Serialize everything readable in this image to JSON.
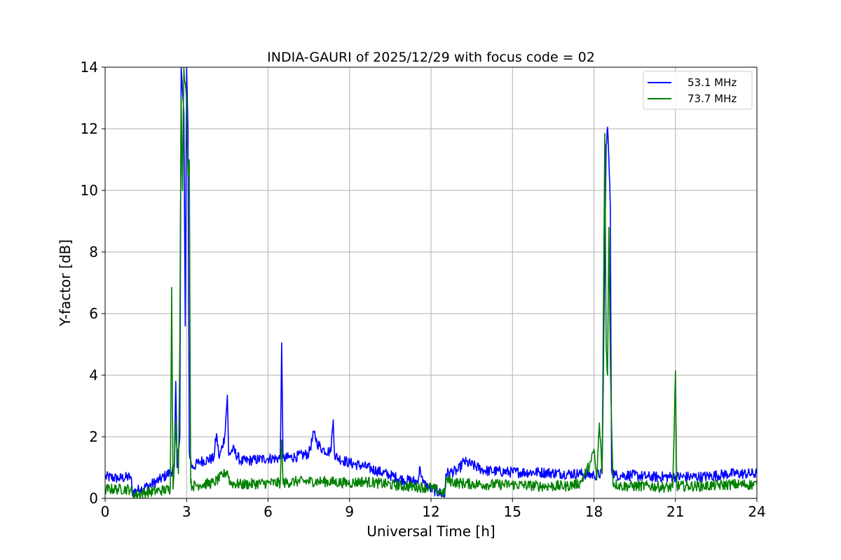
{
  "chart_data": {
    "type": "line",
    "title": "INDIA-GAURI of 2025/12/29 with focus code = 02",
    "xlabel": "Universal Time [h]",
    "ylabel": "Y-factor [dB]",
    "xlim": [
      0,
      24
    ],
    "ylim": [
      0,
      14
    ],
    "xticks": [
      0,
      3,
      6,
      9,
      12,
      15,
      18,
      21,
      24
    ],
    "yticks": [
      0,
      2,
      4,
      6,
      8,
      10,
      12,
      14
    ],
    "grid": true,
    "legend_position": "top-right",
    "series": [
      {
        "name": "53.1 MHz",
        "color": "#0000ff",
        "x": [
          0.0,
          0.5,
          0.95,
          1.0,
          1.3,
          1.7,
          2.0,
          2.4,
          2.55,
          2.6,
          2.65,
          2.7,
          2.75,
          2.8,
          2.85,
          2.9,
          2.95,
          3.0,
          3.05,
          3.1,
          3.2,
          3.5,
          4.0,
          4.1,
          4.2,
          4.4,
          4.5,
          4.55,
          4.7,
          5.0,
          5.5,
          6.0,
          6.45,
          6.5,
          6.55,
          7.0,
          7.5,
          7.7,
          7.8,
          8.0,
          8.3,
          8.4,
          8.45,
          8.6,
          9.0,
          9.5,
          10.0,
          10.5,
          11.0,
          11.5,
          11.6,
          11.7,
          12.0,
          12.4,
          12.5,
          12.55,
          12.7,
          13.0,
          13.2,
          14.0,
          15.0,
          16.0,
          17.0,
          17.5,
          18.0,
          18.3,
          18.45,
          18.5,
          18.55,
          18.6,
          18.65,
          18.8,
          19.0,
          19.5,
          20.0,
          21.0,
          21.5,
          22.0,
          23.0,
          24.0
        ],
        "y": [
          0.7,
          0.65,
          0.7,
          0.2,
          0.3,
          0.45,
          0.6,
          0.85,
          1.0,
          3.8,
          1.0,
          1.6,
          2.0,
          14.0,
          13.2,
          12.5,
          5.6,
          14.0,
          12.0,
          1.5,
          1.0,
          1.2,
          1.3,
          2.1,
          1.3,
          2.0,
          3.35,
          1.4,
          1.6,
          1.2,
          1.25,
          1.3,
          1.3,
          5.05,
          1.3,
          1.35,
          1.45,
          2.15,
          1.8,
          1.6,
          1.5,
          2.55,
          1.4,
          1.3,
          1.15,
          1.05,
          0.9,
          0.75,
          0.6,
          0.55,
          1.0,
          0.5,
          0.3,
          0.15,
          0.05,
          0.8,
          0.85,
          0.9,
          1.2,
          0.9,
          0.85,
          0.85,
          0.8,
          0.8,
          0.75,
          0.8,
          11.5,
          12.05,
          11.0,
          9.5,
          0.9,
          0.75,
          0.75,
          0.75,
          0.7,
          0.7,
          0.7,
          0.7,
          0.8,
          0.8
        ]
      },
      {
        "name": "73.7 MHz",
        "color": "#008000",
        "x": [
          0.0,
          0.5,
          0.95,
          1.0,
          1.5,
          2.0,
          2.4,
          2.45,
          2.5,
          2.55,
          2.6,
          2.7,
          2.75,
          2.8,
          2.85,
          2.9,
          2.95,
          3.0,
          3.05,
          3.1,
          3.15,
          3.2,
          3.5,
          4.0,
          4.4,
          4.5,
          4.6,
          5.0,
          6.0,
          6.45,
          6.5,
          6.55,
          7.0,
          8.0,
          9.0,
          9.5,
          10.0,
          11.0,
          12.0,
          12.4,
          12.5,
          12.55,
          13.0,
          14.0,
          15.0,
          16.0,
          17.0,
          17.5,
          17.9,
          18.0,
          18.1,
          18.2,
          18.3,
          18.4,
          18.45,
          18.5,
          18.55,
          18.6,
          18.7,
          19.0,
          20.0,
          20.9,
          20.95,
          21.0,
          21.05,
          21.5,
          22.0,
          23.0,
          24.0
        ],
        "y": [
          0.3,
          0.3,
          0.3,
          0.1,
          0.2,
          0.25,
          0.3,
          6.85,
          0.3,
          1.2,
          2.5,
          0.8,
          5.0,
          13.0,
          10.0,
          14.0,
          13.5,
          12.9,
          10.5,
          11.0,
          0.5,
          0.4,
          0.45,
          0.5,
          0.8,
          0.9,
          0.5,
          0.45,
          0.5,
          0.5,
          1.9,
          0.5,
          0.55,
          0.55,
          0.5,
          0.55,
          0.5,
          0.4,
          0.35,
          0.2,
          0.15,
          0.6,
          0.5,
          0.45,
          0.45,
          0.4,
          0.4,
          0.5,
          1.2,
          1.6,
          0.6,
          2.45,
          0.8,
          11.85,
          4.9,
          4.0,
          8.8,
          4.5,
          0.5,
          0.4,
          0.4,
          0.35,
          2.0,
          4.15,
          0.4,
          0.4,
          0.4,
          0.45,
          0.45
        ]
      }
    ]
  }
}
